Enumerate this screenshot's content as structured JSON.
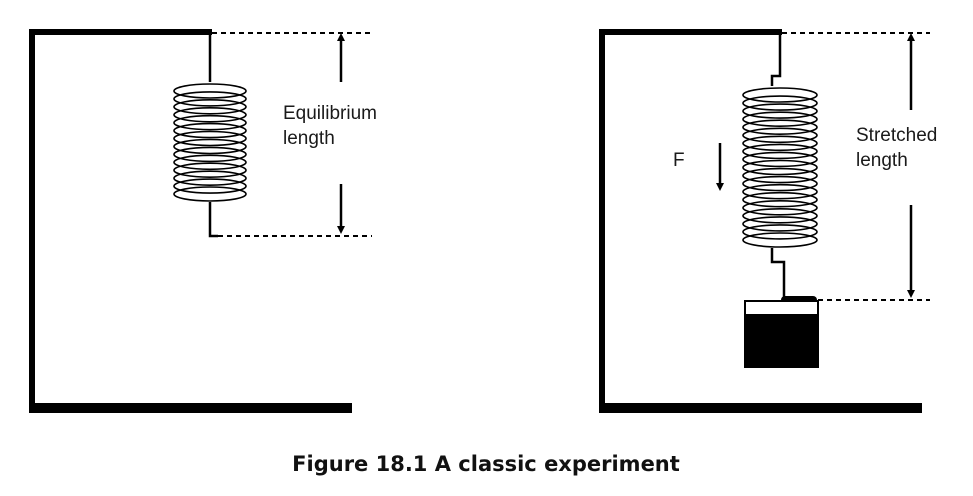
{
  "left_panel": {
    "label_line1": "Equilibrium",
    "label_line2": "length"
  },
  "right_panel": {
    "force_label": "F",
    "label_line1": "Stretched",
    "label_line2": "length"
  },
  "caption": "Figure 18.1 A classic experiment"
}
